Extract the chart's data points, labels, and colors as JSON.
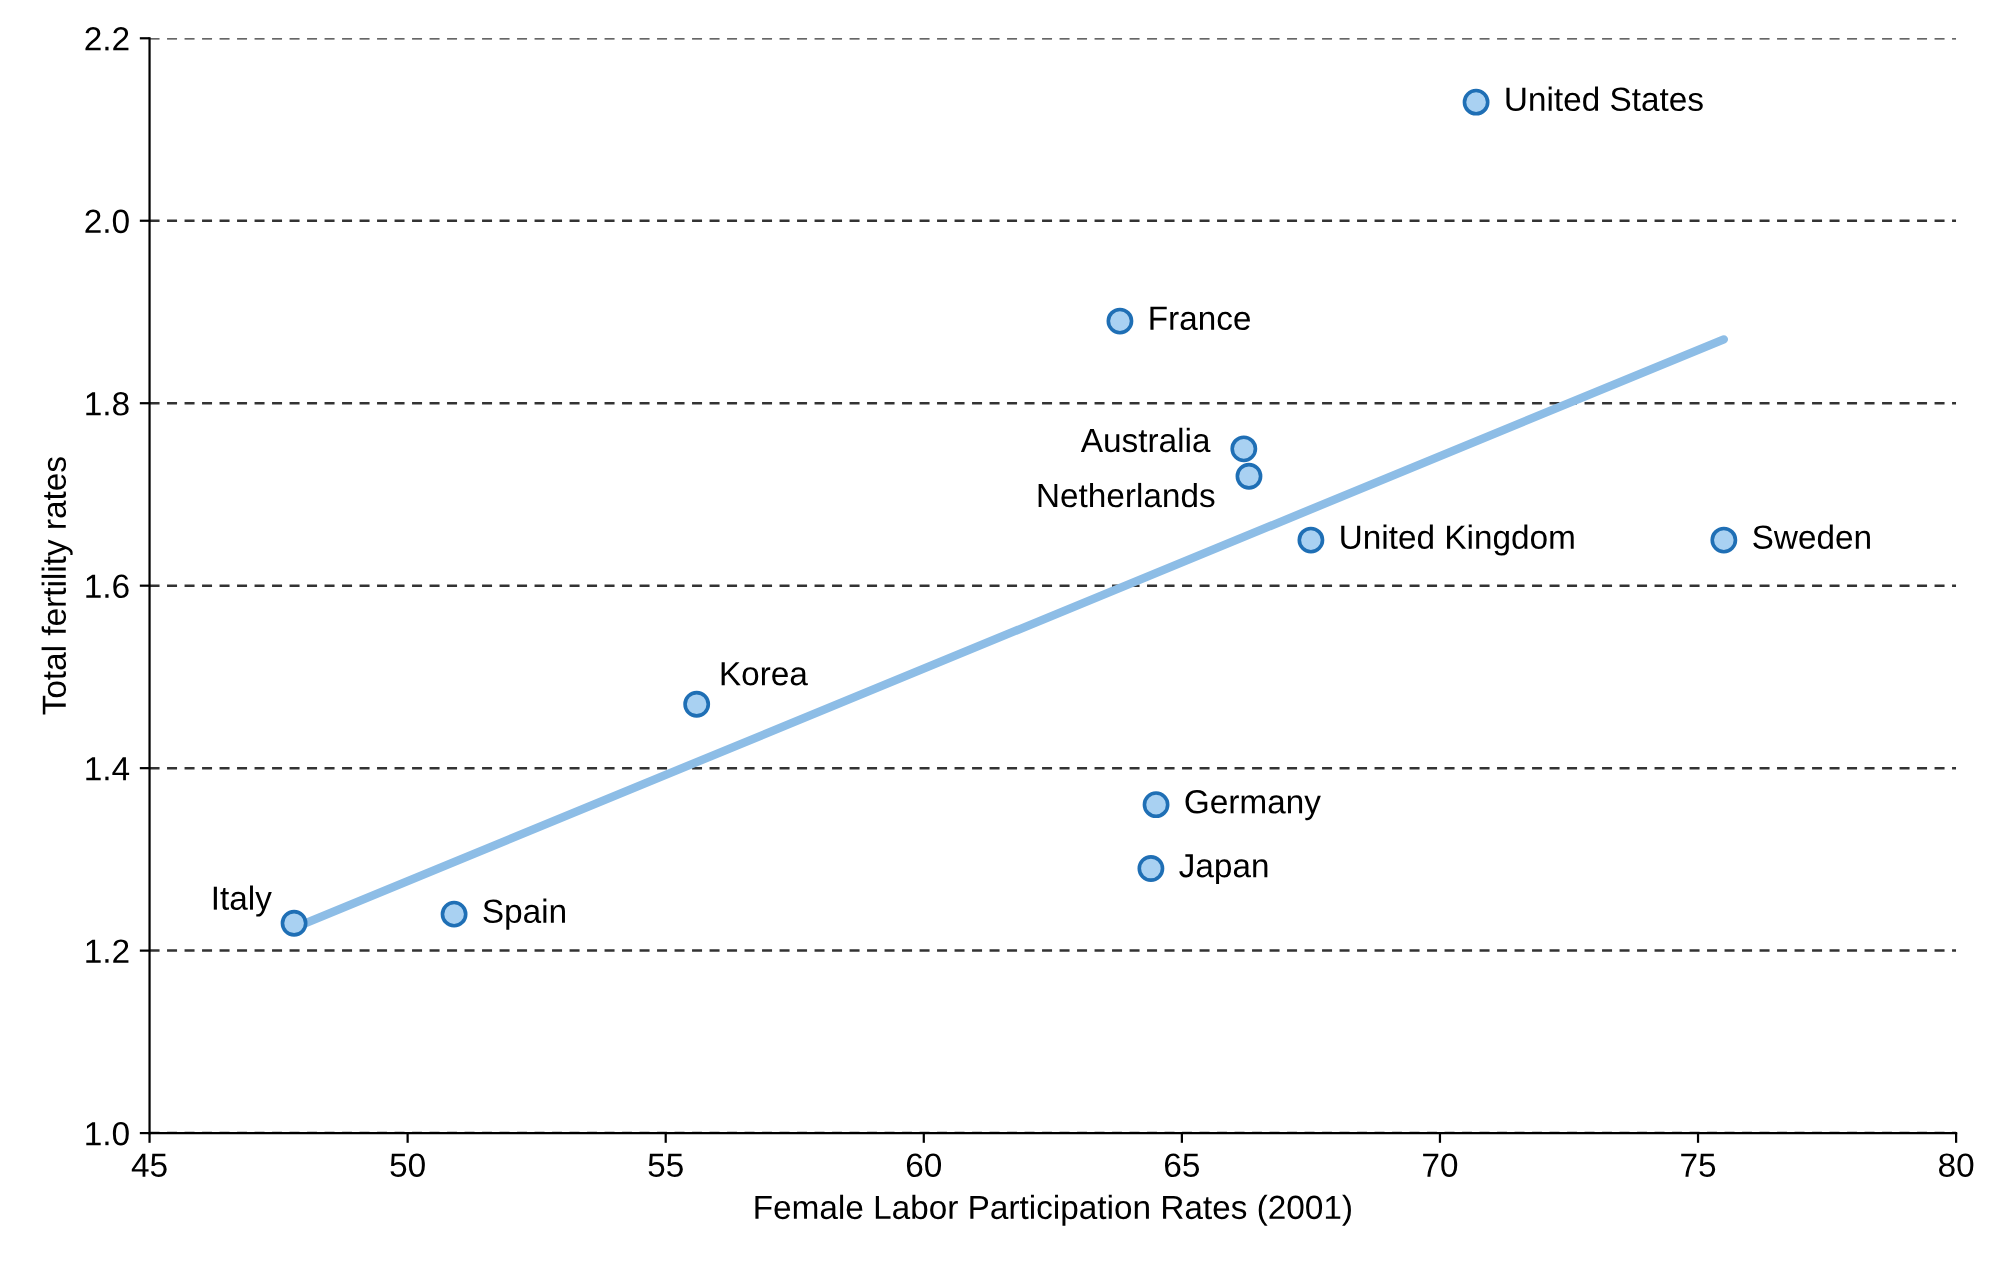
{
  "chart_data": {
    "type": "scatter",
    "xlabel": "Female Labor Participation Rates (2001)",
    "ylabel": "Total fertility rates",
    "series": [
      {
        "color": "#a9d1f2",
        "marker": "circle",
        "x": [
          70.7,
          63.8,
          66.2,
          66.3,
          67.5,
          75.5,
          55.6,
          64.5,
          64.4,
          47.8,
          50.9
        ],
        "values": [
          2.13,
          1.89,
          1.75,
          1.72,
          1.65,
          1.65,
          1.47,
          1.36,
          1.29,
          1.23,
          1.24
        ]
      },
      {
        "type": "line",
        "color": "#8dbde6",
        "x": [
          47.8,
          75.5
        ],
        "values": [
          1.225,
          1.87
        ]
      }
    ],
    "annotations": [
      {
        "text": "United States",
        "x": 70.7,
        "y": 2.13
      },
      {
        "text": "France",
        "x": 63.8,
        "y": 1.89
      },
      {
        "text": "Australia",
        "x": 66.2,
        "y": 1.75
      },
      {
        "text": "Netherlands",
        "x": 66.3,
        "y": 1.72
      },
      {
        "text": "United Kingdom",
        "x": 67.5,
        "y": 1.65
      },
      {
        "text": "Sweden",
        "x": 75.5,
        "y": 1.65
      },
      {
        "text": "Korea",
        "x": 55.6,
        "y": 1.47
      },
      {
        "text": "Germany",
        "x": 64.5,
        "y": 1.36
      },
      {
        "text": "Japan",
        "x": 64.4,
        "y": 1.29
      },
      {
        "text": "Italy",
        "x": 47.8,
        "y": 1.23
      },
      {
        "text": "Spain",
        "x": 50.9,
        "y": 1.24
      }
    ],
    "xlim": [
      45,
      80
    ],
    "xticks": [
      45,
      50,
      55,
      60,
      65,
      70,
      75,
      80
    ],
    "ylim": [
      1.0,
      2.2
    ],
    "yticks": [
      {
        "value": 1.0,
        "label": "1.0"
      },
      {
        "value": 1.2,
        "label": "1.2"
      },
      {
        "value": 1.4,
        "label": "1.4"
      },
      {
        "value": 1.6,
        "label": "1.6"
      },
      {
        "value": 1.8,
        "label": "1.8"
      },
      {
        "value": 2.0,
        "label": "2.0"
      },
      {
        "value": 2.2,
        "label": "2.2"
      }
    ],
    "grid": "y",
    "legend": false
  }
}
